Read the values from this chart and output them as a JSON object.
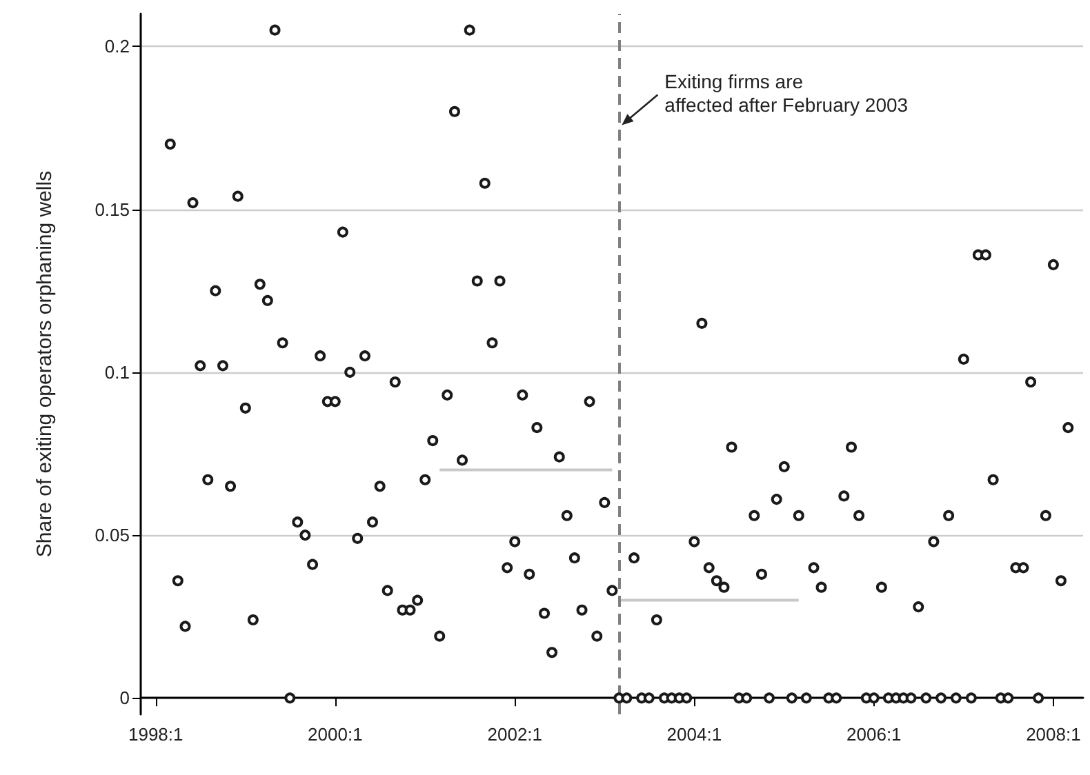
{
  "chart_data": {
    "type": "scatter",
    "ylabel": "Share of exiting operators orphaning wells",
    "x": [
      "1998-03",
      "1998-04",
      "1998-05",
      "1998-06",
      "1998-07",
      "1998-08",
      "1998-09",
      "1998-10",
      "1998-11",
      "1998-12",
      "1999-01",
      "1999-02",
      "1999-03",
      "1999-04",
      "1999-05",
      "1999-06",
      "1999-07",
      "1999-08",
      "1999-09",
      "1999-10",
      "1999-11",
      "1999-12",
      "2000-01",
      "2000-02",
      "2000-03",
      "2000-04",
      "2000-05",
      "2000-06",
      "2000-07",
      "2000-08",
      "2000-09",
      "2000-10",
      "2000-11",
      "2000-12",
      "2001-01",
      "2001-02",
      "2001-03",
      "2001-04",
      "2001-05",
      "2001-06",
      "2001-07",
      "2001-08",
      "2001-09",
      "2001-10",
      "2001-11",
      "2001-12",
      "2002-01",
      "2002-02",
      "2002-03",
      "2002-04",
      "2002-05",
      "2002-06",
      "2002-07",
      "2002-08",
      "2002-09",
      "2002-10",
      "2002-11",
      "2002-12",
      "2003-01",
      "2003-02",
      "2003-03",
      "2003-04",
      "2003-05",
      "2003-06",
      "2003-07",
      "2003-08",
      "2003-09",
      "2003-10",
      "2003-11",
      "2003-12",
      "2004-01",
      "2004-02",
      "2004-03",
      "2004-04",
      "2004-05",
      "2004-06",
      "2004-07",
      "2004-08",
      "2004-09",
      "2004-10",
      "2004-11",
      "2004-12",
      "2005-01",
      "2005-02",
      "2005-03",
      "2005-04",
      "2005-05",
      "2005-06",
      "2005-07",
      "2005-08",
      "2005-09",
      "2005-10",
      "2005-11",
      "2005-12",
      "2006-01",
      "2006-02",
      "2006-03",
      "2006-04",
      "2006-05",
      "2006-06",
      "2006-07",
      "2006-08",
      "2006-09",
      "2006-10",
      "2006-11",
      "2006-12",
      "2007-01",
      "2007-02",
      "2007-03",
      "2007-04",
      "2007-05",
      "2007-06",
      "2007-07",
      "2007-08",
      "2007-09",
      "2007-10",
      "2007-11",
      "2007-12",
      "2008-01",
      "2008-02",
      "2008-03"
    ],
    "series": [
      {
        "color": "#1a1a1a",
        "values": [
          0.17,
          0.036,
          0.022,
          0.152,
          0.102,
          0.067,
          0.125,
          0.102,
          0.065,
          0.154,
          0.089,
          0.024,
          0.127,
          0.122,
          0.205,
          0.109,
          0,
          0.054,
          0.05,
          0.041,
          0.105,
          0.091,
          0.091,
          0.143,
          0.1,
          0.049,
          0.105,
          0.054,
          0.065,
          0.033,
          0.097,
          0.027,
          0.027,
          0.03,
          0.067,
          0.079,
          0.019,
          0.093,
          0.18,
          0.073,
          0.205,
          0.128,
          0.158,
          0.109,
          0.128,
          0.04,
          0.048,
          0.093,
          0.038,
          0.083,
          0.026,
          0.014,
          0.074,
          0.056,
          0.043,
          0.027,
          0.091,
          0.019,
          0.06,
          0.033,
          0,
          0,
          0.043,
          0,
          0,
          0.024,
          0,
          0,
          0,
          0,
          0.048,
          0.115,
          0.04,
          0.036,
          0.034,
          0.077,
          0,
          0,
          0.056,
          0.038,
          0,
          0.061,
          0.071,
          0,
          0.056,
          0,
          0.04,
          0.034,
          0,
          0,
          0.062,
          0.077,
          0.056,
          0,
          0,
          0.034,
          0,
          0,
          0,
          0,
          0.028,
          0,
          0.048,
          0,
          0.056,
          0,
          0.104,
          0,
          0.136,
          0.136,
          0.067,
          0,
          0,
          0.04,
          0.04,
          0.097,
          0,
          0.056,
          0.133,
          0.036,
          0.083
        ]
      },
      {
        "type": "line",
        "marker": "none",
        "color": "#c8c8c8",
        "x": [
          "2001-03",
          "2003-02"
        ],
        "values": [
          0.07,
          0.07
        ]
      },
      {
        "type": "line",
        "marker": "none",
        "color": "#c8c8c8",
        "x": [
          "2003-03",
          "2005-03"
        ],
        "values": [
          0.03,
          0.03
        ]
      }
    ],
    "marker": "circle",
    "xlim": [
      "1997-11",
      "2008-05"
    ],
    "xticks": [
      {
        "value": "1998-01",
        "label": "1998:1"
      },
      {
        "value": "2000-01",
        "label": "2000:1"
      },
      {
        "value": "2002-01",
        "label": "2002:1"
      },
      {
        "value": "2004-01",
        "label": "2004:1"
      },
      {
        "value": "2006-01",
        "label": "2006:1"
      },
      {
        "value": "2008-01",
        "label": "2008:1"
      }
    ],
    "ylim": [
      -0.005,
      0.21
    ],
    "yticks": [
      0,
      0.05,
      0.1,
      0.15,
      0.2
    ],
    "grid": "y",
    "ref_lines": [
      {
        "axis": "x",
        "value": "2003-03",
        "color": "#808080",
        "line_style": "dashed"
      }
    ],
    "annotations": [
      {
        "text": "Exiting firms are\naffected after February 2003",
        "x": "2003-03",
        "y": 0.175
      }
    ]
  }
}
